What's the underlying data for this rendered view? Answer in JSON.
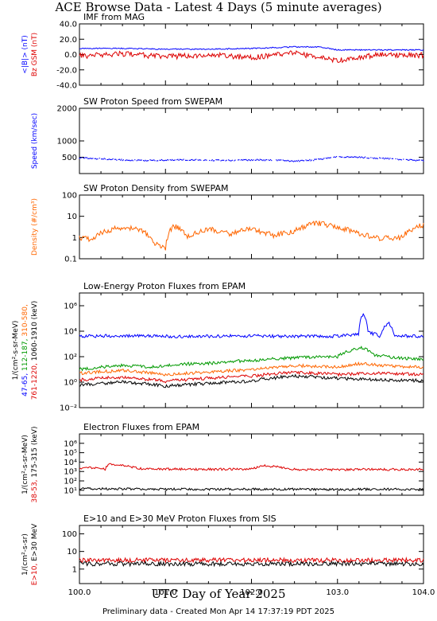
{
  "title": "ACE Browse Data - Latest 4 Days (5 minute averages)",
  "xaxis_title": "UTC Day of Year 2025",
  "footer": "Preliminary data - Created Mon Apr 14 17:37:19 PDT 2025",
  "colors": {
    "blue": "#0000ff",
    "red": "#dd0000",
    "orange": "#ff6600",
    "green": "#009900",
    "black": "#000000"
  },
  "chart_data": [
    {
      "type": "line",
      "title": "IMF from MAG",
      "xlim": [
        100.0,
        104.0
      ],
      "ylim": [
        -40,
        40
      ],
      "scale": "linear",
      "yticks": [
        "40.0",
        "20.0",
        "0.0",
        "-20.0",
        "-40.0"
      ],
      "ytick_values": [
        40,
        20,
        0,
        -20,
        -40
      ],
      "ylabel_lines": [
        {
          "parts": [
            {
              "text": "<|B|> (nT)",
              "color": "#0000ff"
            }
          ]
        },
        {
          "parts": [
            {
              "text": "Bz GSM (nT)",
              "color": "#dd0000"
            }
          ]
        }
      ],
      "series": [
        {
          "name": "<|B|>",
          "color": "#0000ff",
          "x": [
            100.0,
            100.5,
            101.0,
            101.5,
            102.0,
            102.5,
            102.8,
            103.0,
            103.5,
            104.0
          ],
          "y": [
            8,
            8,
            7,
            7,
            8,
            10,
            10,
            6,
            6,
            6
          ]
        },
        {
          "name": "Bz GSM",
          "color": "#dd0000",
          "x": [
            100.0,
            100.5,
            101.0,
            101.5,
            102.0,
            102.5,
            103.0,
            103.5,
            104.0
          ],
          "y": [
            -2,
            1,
            -3,
            0,
            -4,
            2,
            -8,
            0,
            -1
          ]
        }
      ]
    },
    {
      "type": "scatter",
      "title": "SW Proton Speed from SWEPAM",
      "xlim": [
        100.0,
        104.0
      ],
      "ylim": [
        0,
        2000
      ],
      "scale": "linear",
      "yticks": [
        "2000",
        "1000",
        "500"
      ],
      "ytick_values": [
        2000,
        1000,
        500
      ],
      "ylabel_lines": [
        {
          "parts": [
            {
              "text": "Speed (km/sec)",
              "color": "#0000ff"
            }
          ]
        }
      ],
      "series": [
        {
          "name": "Speed",
          "color": "#0000ff",
          "x": [
            100.0,
            100.25,
            100.5,
            100.75,
            101.0,
            101.25,
            101.5,
            101.75,
            102.0,
            102.25,
            102.5,
            102.75,
            103.0,
            103.25,
            103.5,
            103.75,
            104.0
          ],
          "y": [
            480,
            450,
            420,
            400,
            410,
            420,
            410,
            400,
            420,
            410,
            380,
            420,
            520,
            500,
            470,
            430,
            390
          ]
        }
      ]
    },
    {
      "type": "line",
      "title": "SW Proton Density from SWEPAM",
      "xlim": [
        100.0,
        104.0
      ],
      "ylim": [
        0.1,
        100
      ],
      "scale": "log",
      "yticks": [
        "100",
        "10",
        "1",
        "0.1"
      ],
      "ytick_values": [
        100,
        10,
        1,
        0.1
      ],
      "ylabel_lines": [
        {
          "parts": [
            {
              "text": "Density (#/cm³)",
              "color": "#ff6600"
            }
          ]
        }
      ],
      "series": [
        {
          "name": "Density",
          "color": "#ff6600",
          "x": [
            100.0,
            100.15,
            100.3,
            100.5,
            100.7,
            100.85,
            101.0,
            101.1,
            101.25,
            101.5,
            101.75,
            102.0,
            102.25,
            102.5,
            102.75,
            103.0,
            103.25,
            103.5,
            103.75,
            104.0
          ],
          "y": [
            1.0,
            0.8,
            2.0,
            3.0,
            2.5,
            0.6,
            0.3,
            3.5,
            1.0,
            2.5,
            1.5,
            2.5,
            1.2,
            2.0,
            5.0,
            3.0,
            1.5,
            0.9,
            1.0,
            4.0
          ]
        }
      ]
    },
    {
      "type": "line",
      "title": "Low-Energy Proton Fluxes from EPAM",
      "xlim": [
        100.0,
        104.0
      ],
      "ylim": [
        0.01,
        10000000
      ],
      "scale": "log",
      "yticks": [
        "10⁶",
        "10⁴",
        "10²",
        "10⁰",
        "10⁻²"
      ],
      "ytick_values": [
        1000000,
        10000,
        100,
        1,
        0.01
      ],
      "ylabel_lines": [
        {
          "parts": [
            {
              "text": "1/(cm²-s-sr-MeV)",
              "color": "#000000"
            }
          ]
        },
        {
          "parts": [
            {
              "text": "47-65,",
              "color": "#0000ff"
            },
            {
              "text": " 112-187,",
              "color": "#009900"
            },
            {
              "text": " 310-580,",
              "color": "#ff6600"
            }
          ]
        },
        {
          "parts": [
            {
              "text": "761-1220,",
              "color": "#dd0000"
            },
            {
              "text": " 1060-1910 (keV)",
              "color": "#000000"
            }
          ]
        }
      ],
      "series": [
        {
          "name": "47-65",
          "color": "#0000ff",
          "x": [
            100.0,
            100.75,
            101.0,
            101.5,
            102.0,
            102.5,
            103.0,
            103.25,
            103.3,
            103.35,
            103.5,
            103.6,
            103.65,
            104.0
          ],
          "y": [
            4000,
            4500,
            4000,
            4000,
            4200,
            4000,
            4000,
            6000,
            200000,
            8000,
            4000,
            40000,
            4500,
            4000
          ]
        },
        {
          "name": "112-187",
          "color": "#009900",
          "x": [
            100.0,
            100.5,
            100.9,
            101.1,
            101.5,
            102.0,
            102.5,
            103.0,
            103.3,
            103.4,
            103.5,
            103.65,
            104.0
          ],
          "y": [
            10,
            20,
            15,
            25,
            30,
            50,
            80,
            100,
            500,
            150,
            120,
            80,
            60
          ]
        },
        {
          "name": "310-580",
          "color": "#ff6600",
          "x": [
            100.0,
            100.5,
            101.0,
            101.5,
            102.0,
            102.5,
            103.0,
            103.3,
            103.5,
            104.0
          ],
          "y": [
            5,
            8,
            4,
            6,
            10,
            20,
            15,
            30,
            20,
            15
          ]
        },
        {
          "name": "761-1220",
          "color": "#dd0000",
          "x": [
            100.0,
            100.5,
            101.0,
            101.5,
            102.0,
            102.5,
            103.0,
            103.5,
            104.0
          ],
          "y": [
            1.5,
            2.5,
            1.2,
            2.0,
            3.0,
            6.0,
            4.0,
            5.0,
            4.0
          ]
        },
        {
          "name": "1060-1910",
          "color": "#000000",
          "x": [
            100.0,
            100.5,
            101.0,
            101.5,
            102.0,
            102.5,
            103.0,
            103.5,
            104.0
          ],
          "y": [
            0.6,
            1.0,
            0.5,
            0.8,
            1.2,
            3.0,
            2.0,
            1.5,
            1.3
          ]
        }
      ]
    },
    {
      "type": "line",
      "title": "Electron Fluxes from EPAM",
      "xlim": [
        100.0,
        104.0
      ],
      "ylim": [
        3,
        10000000
      ],
      "scale": "log",
      "yticks": [
        "10⁶",
        "10⁵",
        "10⁴",
        "10³",
        "10²",
        "10¹"
      ],
      "ytick_values": [
        1000000,
        100000,
        10000,
        1000,
        100,
        10
      ],
      "ylabel_lines": [
        {
          "parts": [
            {
              "text": "1/(cm²-s-sr-MeV)",
              "color": "#000000"
            }
          ]
        },
        {
          "parts": [
            {
              "text": "38-53,",
              "color": "#dd0000"
            },
            {
              "text": " 175-315 (keV)",
              "color": "#000000"
            }
          ]
        }
      ],
      "series": [
        {
          "name": "38-53",
          "color": "#dd0000",
          "x": [
            100.0,
            100.1,
            100.3,
            100.35,
            100.7,
            101.0,
            101.5,
            102.0,
            102.15,
            102.5,
            103.0,
            103.5,
            104.0
          ],
          "y": [
            2200,
            2500,
            1800,
            6000,
            2000,
            1800,
            1700,
            1800,
            4000,
            1700,
            1600,
            1700,
            1600
          ]
        },
        {
          "name": "175-315",
          "color": "#000000",
          "x": [
            100.0,
            100.5,
            101.0,
            101.5,
            102.0,
            102.5,
            103.0,
            103.5,
            104.0
          ],
          "y": [
            15,
            14,
            13,
            13,
            13,
            13,
            12,
            13,
            12
          ]
        }
      ]
    },
    {
      "type": "line",
      "title": "E>10 and E>30 MeV Proton Fluxes from SIS",
      "xlim": [
        100.0,
        104.0
      ],
      "ylim": [
        0.15,
        300
      ],
      "scale": "log",
      "yticks": [
        "100",
        "10",
        "1"
      ],
      "ytick_values": [
        100,
        10,
        1
      ],
      "ylabel_lines": [
        {
          "parts": [
            {
              "text": "1/(cm²-s-sr)",
              "color": "#000000"
            }
          ]
        },
        {
          "parts": [
            {
              "text": "E>10,",
              "color": "#dd0000"
            },
            {
              "text": " E>30 MeV",
              "color": "#000000"
            }
          ]
        }
      ],
      "series": [
        {
          "name": "E>10",
          "color": "#dd0000",
          "x": [
            100.0,
            101.0,
            102.0,
            103.0,
            104.0
          ],
          "y": [
            3.2,
            3.2,
            3.2,
            3.2,
            3.2
          ]
        },
        {
          "name": "E>30",
          "color": "#000000",
          "x": [
            100.0,
            101.0,
            102.0,
            103.0,
            104.0
          ],
          "y": [
            2.0,
            2.0,
            2.0,
            2.0,
            2.0
          ]
        }
      ]
    }
  ],
  "xticks": [
    "100.0",
    "101.0",
    "102.0",
    "103.0",
    "104.0"
  ],
  "xtick_values": [
    100.0,
    101.0,
    102.0,
    103.0,
    104.0
  ]
}
